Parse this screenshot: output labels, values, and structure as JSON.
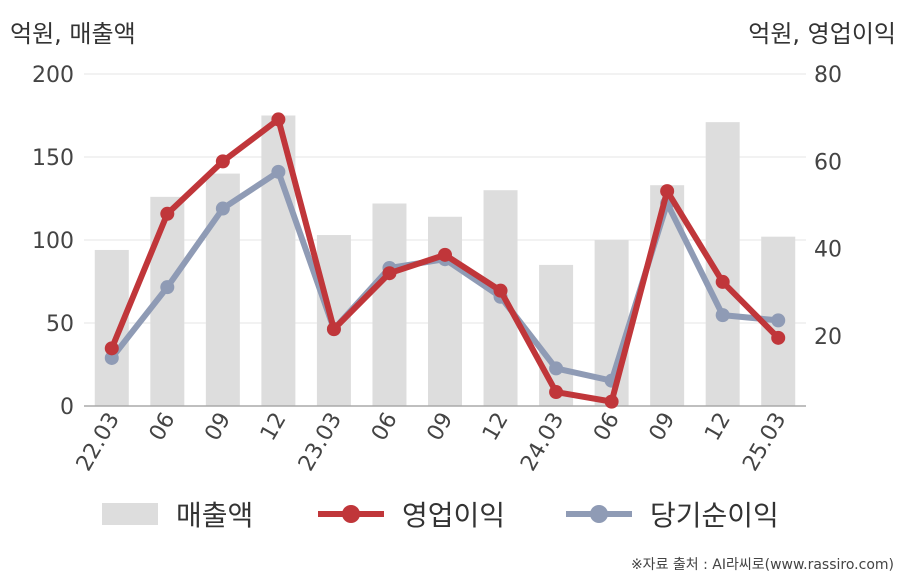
{
  "chart_data": {
    "type": "bar+line",
    "categories": [
      "22.03",
      "06",
      "09",
      "12",
      "23.03",
      "06",
      "09",
      "12",
      "24.03",
      "06",
      "09",
      "12",
      "25.03"
    ],
    "left_axis": {
      "title": "억원, 매출액",
      "ylim": [
        0,
        200
      ],
      "ticks": [
        "0",
        "50",
        "100",
        "150",
        "200"
      ]
    },
    "right_axis": {
      "title": "억원, 영업이익",
      "ylim": [
        4,
        80
      ],
      "ticks": [
        "20",
        "40",
        "60",
        "80"
      ]
    },
    "grid": true,
    "legend_position": "bottom",
    "series": [
      {
        "name": "매출액",
        "type": "bar",
        "axis": "left",
        "color": "#dddddd",
        "values": [
          94,
          126,
          140,
          175,
          103,
          122,
          114,
          130,
          85,
          100,
          133,
          171,
          102
        ]
      },
      {
        "name": "영업이익",
        "type": "line",
        "axis": "right",
        "color": "#c0363a",
        "values": [
          17.2,
          48,
          60,
          69.6,
          21.6,
          34.4,
          38.6,
          30.4,
          7.2,
          5,
          53.2,
          32.4,
          19.6
        ]
      },
      {
        "name": "당기순이익",
        "type": "line",
        "axis": "right",
        "color": "#8f9bb5",
        "values": [
          15,
          31.2,
          49.2,
          57.6,
          21.6,
          35.6,
          37.6,
          29,
          12.6,
          9.8,
          50.4,
          24.8,
          23.6
        ]
      }
    ]
  },
  "source_text": "※자료 출처 : AI라씨로(www.rassiro.com)"
}
